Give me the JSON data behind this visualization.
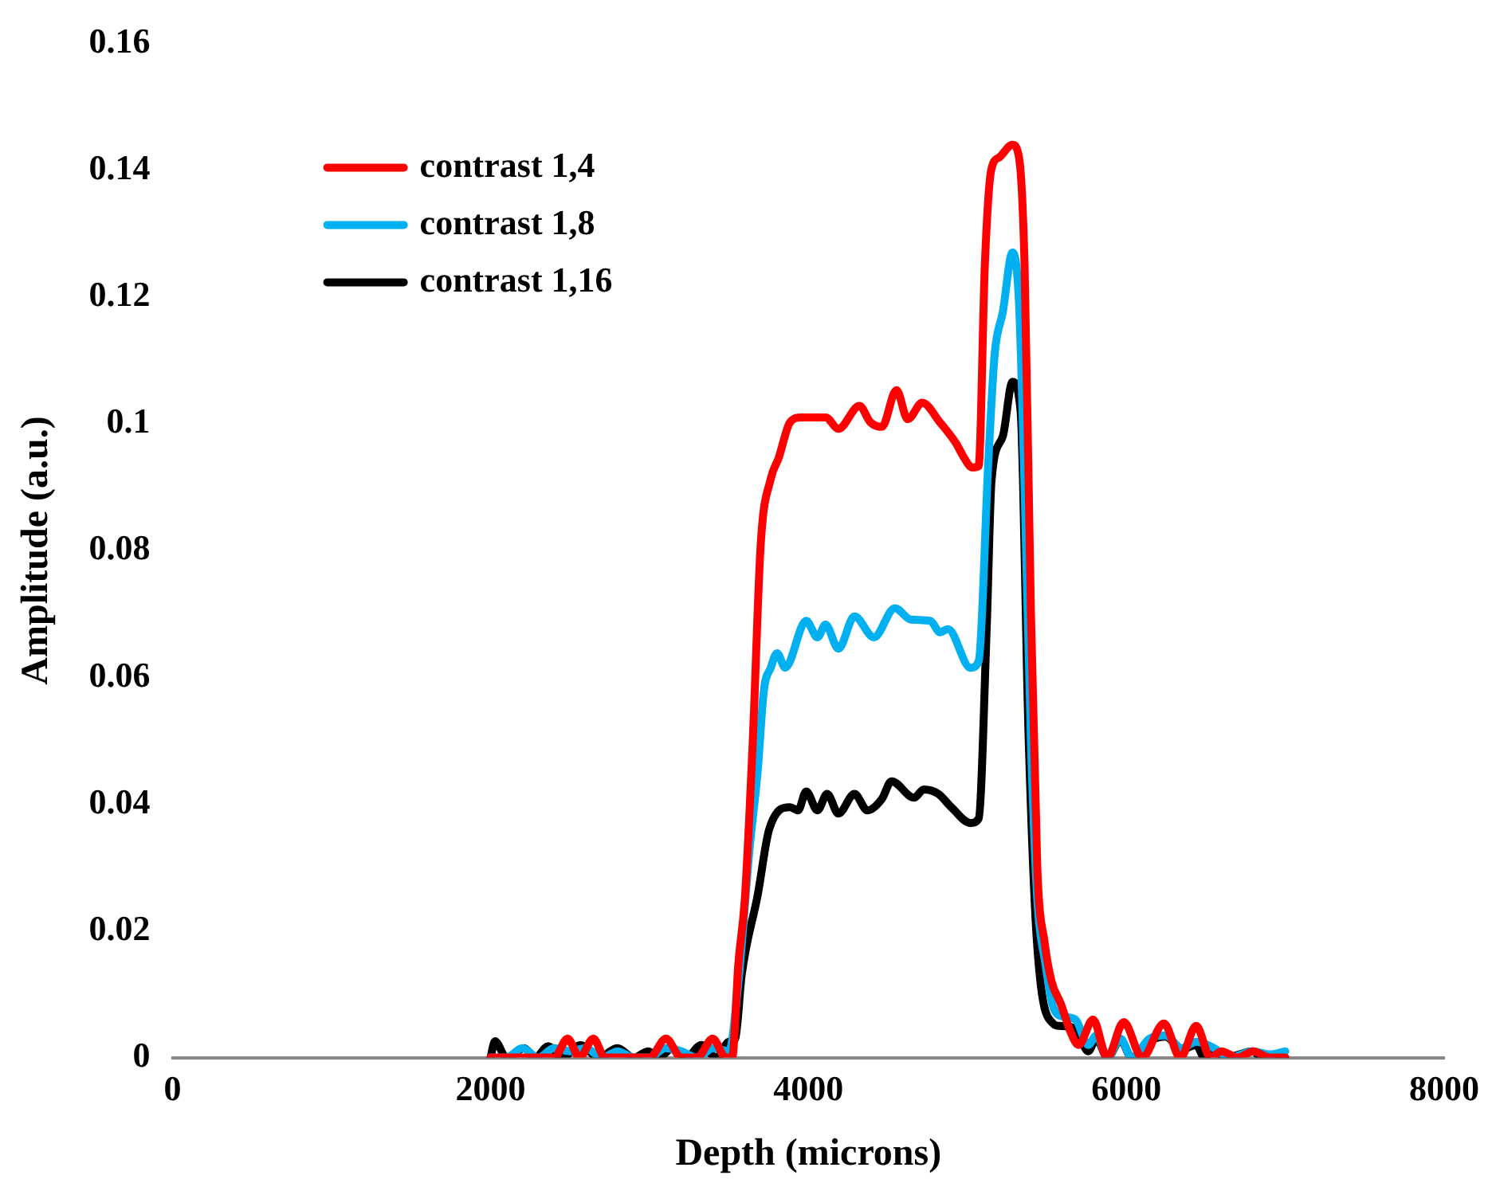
{
  "chart_data": {
    "type": "line",
    "xlabel": "Depth (microns)",
    "ylabel": "Amplitude (a.u.)",
    "xlim": [
      0,
      8000
    ],
    "xticks": [
      0,
      2000,
      4000,
      6000,
      8000
    ],
    "ylim": [
      0,
      0.16
    ],
    "yticks": [
      0,
      0.02,
      0.04,
      0.06,
      0.08,
      0.1,
      0.12,
      0.14,
      0.16
    ],
    "grid": false,
    "legend": "top left",
    "marker": "none",
    "line_style": "solid",
    "series": [
      {
        "name": "contrast 1,4",
        "color": "#ff0000",
        "x": [
          2000,
          2100,
          2200,
          2300,
          2400,
          2485,
          2560,
          2647,
          2720,
          2800,
          2900,
          3000,
          3104,
          3200,
          3300,
          3398,
          3480,
          3520,
          3560,
          3600,
          3650,
          3700,
          3763,
          3813,
          3884,
          3955,
          4108,
          4189,
          4321,
          4391,
          4462,
          4554,
          4625,
          4716,
          4828,
          4929,
          4980,
          5030,
          5071,
          5110,
          5150,
          5200,
          5284,
          5325,
          5360,
          5400,
          5440,
          5487,
          5530,
          5588,
          5650,
          5700,
          5791,
          5880,
          5984,
          6100,
          6237,
          6340,
          6440,
          6530,
          6600,
          6700,
          6800,
          6900,
          7000
        ],
        "values": [
          0,
          0,
          0,
          0,
          0,
          0.003,
          0,
          0.003,
          0,
          0,
          0,
          0,
          0.003,
          0,
          0,
          0.003,
          0,
          0,
          0.015,
          0.025,
          0.05,
          0.081,
          0.0913,
          0.0946,
          0.1002,
          0.101,
          0.101,
          0.0992,
          0.1028,
          0.1002,
          0.0995,
          0.1053,
          0.1007,
          0.1033,
          0.1002,
          0.0969,
          0.0946,
          0.0931,
          0.0933,
          0.125,
          0.14,
          0.142,
          0.144,
          0.142,
          0.125,
          0.07,
          0.03,
          0.018,
          0.012,
          0.0085,
          0.004,
          0.002,
          0.006,
          0,
          0.0056,
          0,
          0.0054,
          0,
          0.005,
          0,
          0.001,
          0,
          0.001,
          0,
          0
        ]
      },
      {
        "name": "contrast 1,8",
        "color": "#00b0f0",
        "x": [
          2000,
          2100,
          2200,
          2300,
          2400,
          2500,
          2600,
          2700,
          2800,
          2900,
          3000,
          3100,
          3200,
          3300,
          3400,
          3500,
          3560,
          3630,
          3680,
          3720,
          3763,
          3803,
          3854,
          3986,
          4057,
          4108,
          4189,
          4290,
          4412,
          4544,
          4645,
          4767,
          4828,
          4878,
          5020,
          5071,
          5132,
          5172,
          5223,
          5284,
          5325,
          5360,
          5400,
          5440,
          5490,
          5540,
          5600,
          5680,
          5761,
          5811,
          5882,
          5963,
          6034,
          6146,
          6247,
          6349,
          6440,
          6552,
          6650,
          6795,
          6900,
          7000
        ],
        "values": [
          0,
          0,
          0.0015,
          0,
          0.0015,
          0.001,
          0.0015,
          0,
          0.001,
          0,
          0,
          0.0015,
          0.001,
          0,
          0.0015,
          0.001,
          0.012,
          0.033,
          0.045,
          0.058,
          0.0615,
          0.0638,
          0.0615,
          0.0689,
          0.0663,
          0.0683,
          0.0645,
          0.0696,
          0.0663,
          0.0709,
          0.0691,
          0.0689,
          0.0671,
          0.0676,
          0.0615,
          0.0625,
          0.094,
          0.111,
          0.1176,
          0.127,
          0.119,
          0.09,
          0.05,
          0.025,
          0.015,
          0.008,
          0.0065,
          0.006,
          0.002,
          0.0035,
          0,
          0.003,
          0,
          0.003,
          0.0035,
          0.0015,
          0.0025,
          0.0015,
          0,
          0.001,
          0.0005,
          0.001
        ]
      },
      {
        "name": "contrast 1,16",
        "color": "#000000",
        "x": [
          2000,
          2028,
          2100,
          2211,
          2280,
          2363,
          2450,
          2566,
          2680,
          2799,
          2900,
          2992,
          3060,
          3144,
          3230,
          3327,
          3420,
          3500,
          3540,
          3580,
          3682,
          3753,
          3884,
          3935,
          3986,
          4057,
          4118,
          4189,
          4290,
          4371,
          4462,
          4523,
          4665,
          4726,
          4818,
          4899,
          5020,
          5071,
          5122,
          5152,
          5223,
          5284,
          5335,
          5385,
          5436,
          5538,
          5578,
          5680,
          5761,
          5811,
          5882,
          5963,
          6034,
          6146,
          6247,
          6349,
          6440,
          6491,
          6552,
          6623,
          6795,
          6856,
          7000
        ],
        "values": [
          0,
          0.0026,
          0,
          0.0015,
          0,
          0.0018,
          0,
          0.002,
          0,
          0.0015,
          0,
          0.001,
          0,
          0.0015,
          0,
          0.002,
          0,
          0.0025,
          0.003,
          0.013,
          0.0258,
          0.036,
          0.0395,
          0.039,
          0.042,
          0.039,
          0.0416,
          0.0385,
          0.0416,
          0.039,
          0.0408,
          0.0436,
          0.041,
          0.0423,
          0.0416,
          0.0395,
          0.037,
          0.0377,
          0.068,
          0.091,
          0.098,
          0.1066,
          0.102,
          0.051,
          0.019,
          0.0054,
          0.005,
          0.0046,
          0.001,
          0.003,
          0,
          0.0028,
          0,
          0.0026,
          0.0033,
          0.0013,
          0.002,
          0,
          0.0013,
          0,
          0.001,
          0,
          0
        ]
      }
    ]
  }
}
